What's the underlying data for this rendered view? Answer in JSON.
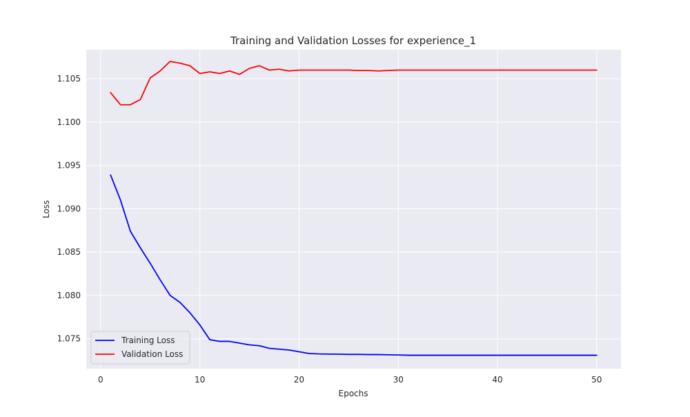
{
  "chart_data": {
    "type": "line",
    "title": "Training and Validation Losses for experience_1",
    "xlabel": "Epochs",
    "ylabel": "Loss",
    "xlim": [
      -1.45,
      52.45
    ],
    "ylim": [
      1.07155,
      1.10835
    ],
    "xticks": [
      0,
      10,
      20,
      30,
      40,
      50
    ],
    "yticks": [
      1.075,
      1.08,
      1.085,
      1.09,
      1.095,
      1.1,
      1.105
    ],
    "ytick_labels": [
      "1.075",
      "1.080",
      "1.085",
      "1.090",
      "1.095",
      "1.100",
      "1.105"
    ],
    "grid": true,
    "legend_position": "lower-left",
    "x": [
      1,
      2,
      3,
      4,
      5,
      6,
      7,
      8,
      9,
      10,
      11,
      12,
      13,
      14,
      15,
      16,
      17,
      18,
      19,
      20,
      21,
      22,
      23,
      24,
      25,
      26,
      27,
      28,
      29,
      30,
      31,
      32,
      33,
      34,
      35,
      36,
      37,
      38,
      39,
      40,
      41,
      42,
      43,
      44,
      45,
      46,
      47,
      48,
      49,
      50
    ],
    "series": [
      {
        "name": "Training Loss",
        "color": "#0000ff",
        "values": [
          1.0939,
          1.091,
          1.0874,
          1.0855,
          1.0837,
          1.0818,
          1.08,
          1.0792,
          1.078,
          1.0766,
          1.0749,
          1.0747,
          1.0747,
          1.0745,
          1.0743,
          1.0742,
          1.0739,
          1.0738,
          1.0737,
          1.0735,
          1.0733,
          1.07325,
          1.07323,
          1.07322,
          1.0732,
          1.0732,
          1.07318,
          1.07318,
          1.07315,
          1.07313,
          1.0731,
          1.0731,
          1.0731,
          1.0731,
          1.0731,
          1.0731,
          1.0731,
          1.0731,
          1.0731,
          1.0731,
          1.0731,
          1.0731,
          1.0731,
          1.0731,
          1.0731,
          1.0731,
          1.0731,
          1.0731,
          1.0731,
          1.0731
        ]
      },
      {
        "name": "Validation Loss",
        "color": "#ff0000",
        "values": [
          1.1034,
          1.102,
          1.102,
          1.1026,
          1.1051,
          1.1059,
          1.107,
          1.1068,
          1.1065,
          1.1056,
          1.1058,
          1.1056,
          1.1059,
          1.1055,
          1.1062,
          1.1065,
          1.106,
          1.1061,
          1.1059,
          1.106,
          1.106,
          1.106,
          1.106,
          1.106,
          1.106,
          1.10595,
          1.10595,
          1.1059,
          1.10595,
          1.106,
          1.106,
          1.106,
          1.106,
          1.106,
          1.106,
          1.106,
          1.106,
          1.106,
          1.106,
          1.106,
          1.106,
          1.106,
          1.106,
          1.106,
          1.106,
          1.106,
          1.106,
          1.106,
          1.106,
          1.106
        ]
      }
    ]
  },
  "colors": {
    "plot_background": "#eaeaf2",
    "grid": "#ffffff",
    "text": "#262626"
  }
}
